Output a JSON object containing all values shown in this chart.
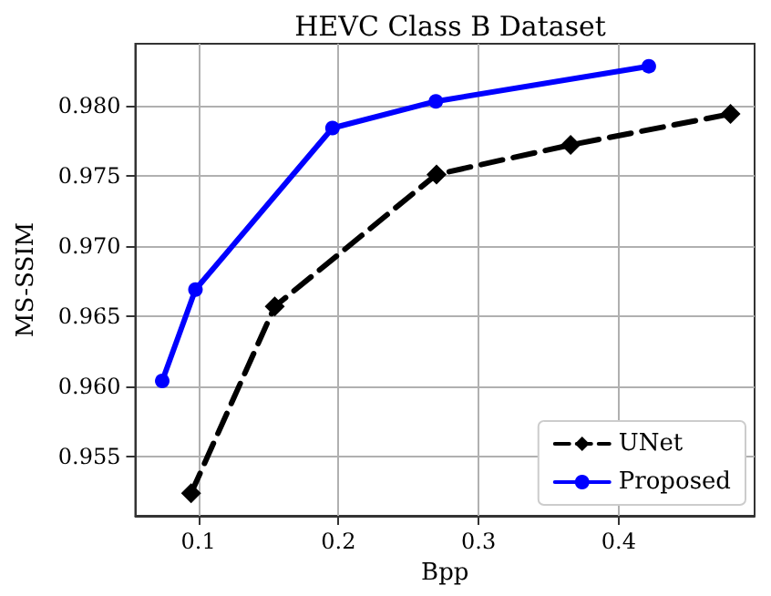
{
  "chart_data": {
    "type": "line",
    "title": "HEVC Class B Dataset",
    "xlabel": "Bpp",
    "ylabel": "MS-SSIM",
    "xlim": [
      0.055,
      0.497
    ],
    "xticks": [
      0.1,
      0.2,
      0.3,
      0.4
    ],
    "ylim": [
      0.9508,
      0.9844
    ],
    "yticks": [
      {
        "value": 0.955,
        "label": "0.955"
      },
      {
        "value": 0.96,
        "label": "0.960"
      },
      {
        "value": 0.965,
        "label": "0.965"
      },
      {
        "value": 0.97,
        "label": "0.970"
      },
      {
        "value": 0.975,
        "label": "0.975"
      },
      {
        "value": 0.98,
        "label": "0.980"
      }
    ],
    "grid": true,
    "legend": "bottom right",
    "series": [
      {
        "name": "UNet",
        "color": "#000000",
        "marker": "diamond",
        "line_style": "dashed",
        "x": [
          0.0948,
          0.1545,
          0.27,
          0.3657,
          0.4798
        ],
        "values": [
          0.9524,
          0.9657,
          0.9751,
          0.9772,
          0.9794
        ]
      },
      {
        "name": "Proposed",
        "color": "#0000ff",
        "marker": "circle",
        "line_style": "solid",
        "x": [
          0.0742,
          0.0979,
          0.1957,
          0.2695,
          0.4215
        ],
        "values": [
          0.9604,
          0.9669,
          0.9784,
          0.9803,
          0.9828
        ]
      }
    ]
  }
}
